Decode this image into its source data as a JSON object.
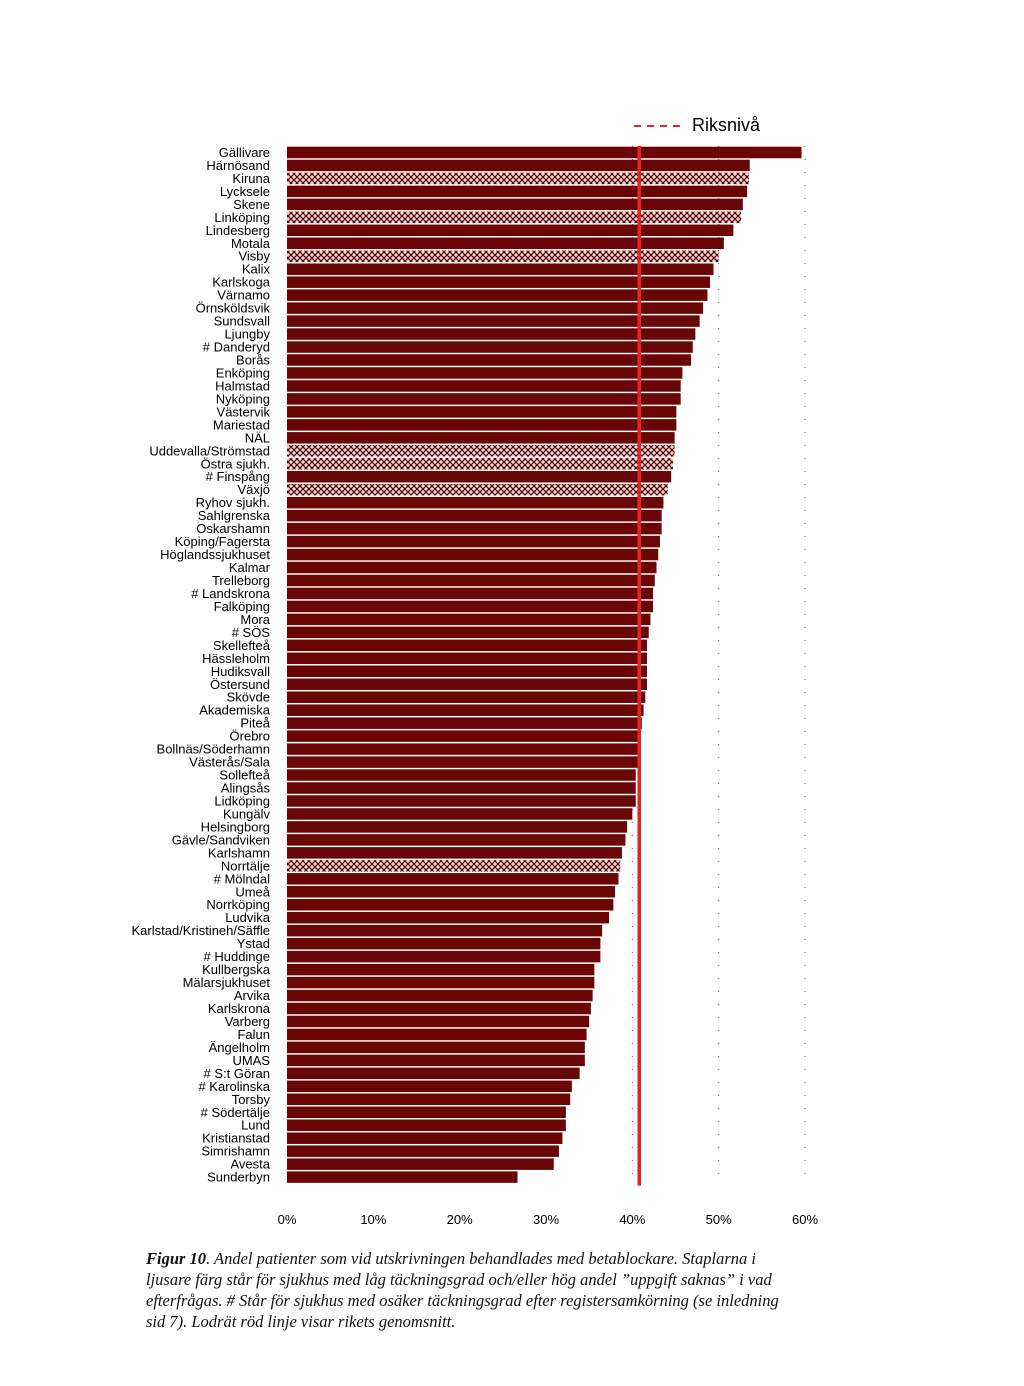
{
  "colors": {
    "bar": "#6b0606",
    "bar_pattern_fg": "#5a0606",
    "bar_pattern_bg": "#f0dcdc",
    "reference_line": "#e0262b",
    "grid": "#555555"
  },
  "chart_data": {
    "type": "bar",
    "orientation": "horizontal",
    "xlim": [
      0,
      60
    ],
    "x_ticks": [
      "0%",
      "10%",
      "20%",
      "30%",
      "40%",
      "50%",
      "60%"
    ],
    "reference_line": {
      "label": "Riksnivå",
      "value": 40.8
    },
    "legend_position": "top-right",
    "grid": "vertical dotted lines at 40%, 50%, 60%",
    "categories": [
      "Gällivare",
      "Härnösand",
      "Kiruna",
      "Lycksele",
      "Skene",
      "Linköping",
      "Lindesberg",
      "Motala",
      "Visby",
      "Kalix",
      "Karlskoga",
      "Värnamo",
      "Örnsköldsvik",
      "Sundsvall",
      "Ljungby",
      "# Danderyd",
      "Borås",
      "Enköping",
      "Halmstad",
      "Nyköping",
      "Västervik",
      "Mariestad",
      "NÄL",
      "Uddevalla/Strömstad",
      "Östra sjukh.",
      "# Finspång",
      "Växjö",
      "Ryhov sjukh.",
      "Sahlgrenska",
      "Oskarshamn",
      "Köping/Fagersta",
      "Höglandssjukhuset",
      "Kalmar",
      "Trelleborg",
      "# Landskrona",
      "Falköping",
      "Mora",
      "# SÖS",
      "Skellefteå",
      "Hässleholm",
      "Hudiksvall",
      "Östersund",
      "Skövde",
      "Akademiska",
      "Piteå",
      "Örebro",
      "Bollnäs/Söderhamn",
      "Västerås/Sala",
      "Sollefteå",
      "Alingsås",
      "Lidköping",
      "Kungälv",
      "Helsingborg",
      "Gävle/Sandviken",
      "Karlshamn",
      "Norrtälje",
      "# Mölndal",
      "Umeå",
      "Norrköping",
      "Ludvika",
      "Karlstad/Kristineh/Säffle",
      "Ystad",
      "# Huddinge",
      "Kullbergska",
      "Mälarsjukhuset",
      "Arvika",
      "Karlskrona",
      "Varberg",
      "Falun",
      "Ängelholm",
      "UMAS",
      "# S:t Göran",
      "# Karolinska",
      "Torsby",
      "# Södertälje",
      "Lund",
      "Kristianstad",
      "Simrishamn",
      "Avesta",
      "Sunderbyn"
    ],
    "values": [
      59.6,
      53.6,
      53.5,
      53.3,
      52.8,
      52.6,
      51.7,
      50.6,
      50.0,
      49.4,
      49.0,
      48.7,
      48.2,
      47.8,
      47.3,
      47.0,
      46.8,
      45.8,
      45.6,
      45.6,
      45.1,
      45.1,
      44.9,
      44.9,
      44.7,
      44.5,
      44.1,
      43.6,
      43.4,
      43.4,
      43.2,
      43.0,
      42.8,
      42.6,
      42.4,
      42.4,
      42.1,
      41.9,
      41.7,
      41.7,
      41.7,
      41.7,
      41.5,
      41.3,
      41.1,
      40.8,
      40.8,
      40.8,
      40.4,
      40.4,
      40.4,
      40.0,
      39.4,
      39.2,
      38.8,
      38.6,
      38.4,
      38.0,
      37.8,
      37.3,
      36.5,
      36.3,
      36.3,
      35.6,
      35.6,
      35.4,
      35.2,
      35.0,
      34.7,
      34.5,
      34.5,
      33.9,
      33.0,
      32.8,
      32.3,
      32.3,
      31.9,
      31.5,
      30.9,
      26.7
    ],
    "low_coverage": [
      "Kiruna",
      "Linköping",
      "Visby",
      "Uddevalla/Strömstad",
      "Östra sjukh.",
      "Växjö",
      "Norrtälje"
    ]
  },
  "caption": {
    "label": "Figur 10",
    "text": ". Andel patienter som vid utskrivningen behandlades med betablockare. Staplarna i ljusare färg står för sjukhus med låg täckningsgrad och/eller hög andel ”uppgift saknas” i vad efterfrågas. # Står för sjukhus med osäker täckningsgrad efter registersamkörning (se inledning sid 7). Lodrät röd linje visar rikets genomsnitt."
  }
}
